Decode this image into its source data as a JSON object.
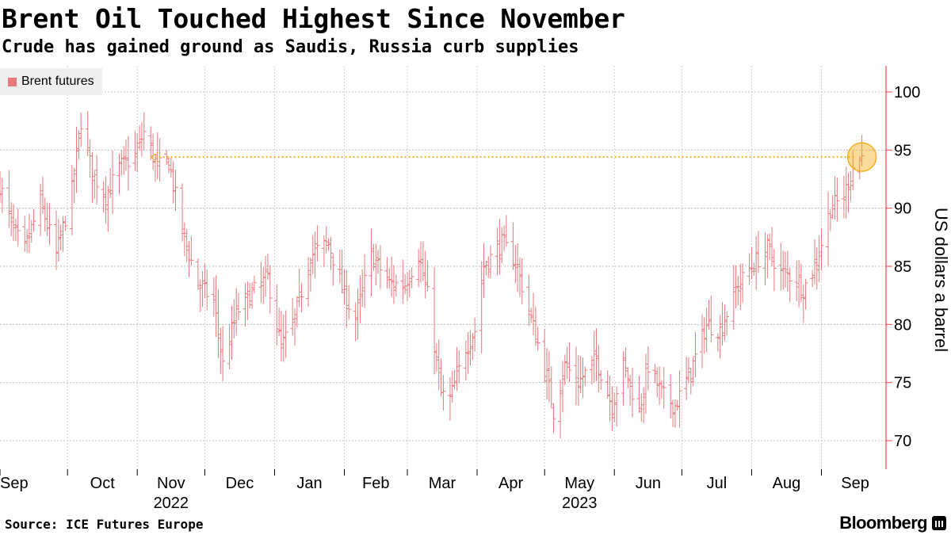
{
  "header": {
    "title": "Brent Oil Touched Highest Since November",
    "subtitle": "Crude has gained ground as Saudis, Russia curb supplies"
  },
  "footer": {
    "source": "Source: ICE Futures Europe",
    "brand": "Bloomberg"
  },
  "chart_data": {
    "type": "ohlc",
    "title": "Brent Oil Touched Highest Since November",
    "subtitle": "Crude has gained ground as Saudis, Russia curb supplies",
    "ylabel": "US dollars a barrel",
    "ylim": [
      67.5,
      102.5
    ],
    "yticks": [
      70,
      75,
      80,
      85,
      90,
      95,
      100
    ],
    "y_axis_position": "right",
    "grid": true,
    "legend": {
      "placement": "top-left",
      "entries": [
        "Brent futures"
      ]
    },
    "series": [
      {
        "name": "Brent futures",
        "color": "#e8787a"
      }
    ],
    "x_month_labels": [
      {
        "label": "Sep",
        "month": "2022-09"
      },
      {
        "label": "Oct",
        "month": "2022-10"
      },
      {
        "label": "Nov",
        "month": "2022-11"
      },
      {
        "label": "Dec",
        "month": "2022-12"
      },
      {
        "label": "Jan",
        "month": "2023-01"
      },
      {
        "label": "Feb",
        "month": "2023-02"
      },
      {
        "label": "Mar",
        "month": "2023-03"
      },
      {
        "label": "Apr",
        "month": "2023-04"
      },
      {
        "label": "May",
        "month": "2023-05"
      },
      {
        "label": "Jun",
        "month": "2023-06"
      },
      {
        "label": "Jul",
        "month": "2023-07"
      },
      {
        "label": "Aug",
        "month": "2023-08"
      },
      {
        "label": "Sep",
        "month": "2023-09"
      }
    ],
    "x_year_labels": [
      {
        "label": "2022",
        "month": "2022-11"
      },
      {
        "label": "2023",
        "month": "2023-05"
      }
    ],
    "anchors": [
      [
        "2022-09-01",
        92.0
      ],
      [
        "2022-09-07",
        88.0
      ],
      [
        "2022-09-12",
        86.5
      ],
      [
        "2022-09-19",
        90.5
      ],
      [
        "2022-09-26",
        86.0
      ],
      [
        "2022-10-03",
        91.5
      ],
      [
        "2022-10-07",
        97.5
      ],
      [
        "2022-10-12",
        93.0
      ],
      [
        "2022-10-18",
        91.0
      ],
      [
        "2022-10-24",
        93.5
      ],
      [
        "2022-10-31",
        94.5
      ],
      [
        "2022-11-04",
        96.5
      ],
      [
        "2022-11-10",
        93.5
      ],
      [
        "2022-11-15",
        94.0
      ],
      [
        "2022-11-21",
        88.0
      ],
      [
        "2022-11-28",
        83.5
      ],
      [
        "2022-12-05",
        82.0
      ],
      [
        "2022-12-09",
        76.5
      ],
      [
        "2022-12-15",
        81.0
      ],
      [
        "2022-12-21",
        82.5
      ],
      [
        "2022-12-29",
        84.0
      ],
      [
        "2023-01-04",
        78.0
      ],
      [
        "2023-01-10",
        80.5
      ],
      [
        "2023-01-17",
        86.0
      ],
      [
        "2023-01-25",
        87.0
      ],
      [
        "2023-02-01",
        82.5
      ],
      [
        "2023-02-06",
        80.5
      ],
      [
        "2023-02-13",
        86.0
      ],
      [
        "2023-02-21",
        83.5
      ],
      [
        "2023-02-28",
        83.5
      ],
      [
        "2023-03-06",
        86.0
      ],
      [
        "2023-03-10",
        82.5
      ],
      [
        "2023-03-16",
        74.0
      ],
      [
        "2023-03-20",
        73.5
      ],
      [
        "2023-03-27",
        78.0
      ],
      [
        "2023-03-31",
        79.5
      ],
      [
        "2023-04-04",
        85.0
      ],
      [
        "2023-04-12",
        87.0
      ],
      [
        "2023-04-18",
        85.5
      ],
      [
        "2023-04-25",
        80.5
      ],
      [
        "2023-05-02",
        75.5
      ],
      [
        "2023-05-05",
        72.5
      ],
      [
        "2023-05-10",
        76.5
      ],
      [
        "2023-05-16",
        75.0
      ],
      [
        "2023-05-24",
        77.0
      ],
      [
        "2023-05-31",
        73.0
      ],
      [
        "2023-06-05",
        76.5
      ],
      [
        "2023-06-12",
        72.5
      ],
      [
        "2023-06-16",
        76.5
      ],
      [
        "2023-06-22",
        74.0
      ],
      [
        "2023-06-28",
        73.0
      ],
      [
        "2023-07-05",
        76.0
      ],
      [
        "2023-07-12",
        80.0
      ],
      [
        "2023-07-18",
        79.5
      ],
      [
        "2023-07-25",
        83.0
      ],
      [
        "2023-08-01",
        85.0
      ],
      [
        "2023-08-08",
        86.5
      ],
      [
        "2023-08-14",
        84.5
      ],
      [
        "2023-08-21",
        84.0
      ],
      [
        "2023-08-24",
        83.0
      ],
      [
        "2023-08-30",
        85.5
      ],
      [
        "2023-09-05",
        90.0
      ],
      [
        "2023-09-11",
        91.0
      ],
      [
        "2023-09-15",
        93.5
      ],
      [
        "2023-09-19",
        94.4
      ]
    ],
    "annotation": {
      "type": "dotted-arrow",
      "color": "#f2b01f",
      "from_date": "2023-09-19",
      "to_date": "2022-11-07",
      "level": 94.4,
      "circle_date": "2023-09-19"
    }
  }
}
